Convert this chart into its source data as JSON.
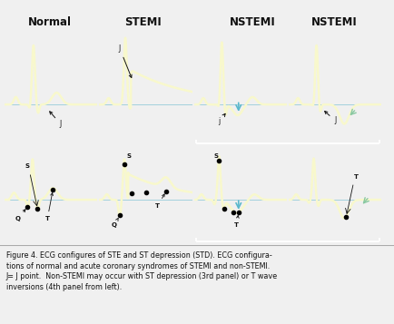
{
  "title_labels": [
    "Normal",
    "STEMI",
    "NSTEMI",
    "NSTEMI"
  ],
  "title_color": "#111111",
  "title_fontsize": 8.5,
  "title_fontweight": "bold",
  "bg_outer": "#f0f0f0",
  "bg_grey_box": "#b0b0b0",
  "panel_bg": "#6ab8d8",
  "ecg_color": "#f8f8cc",
  "baseline_color": "#90c8d8",
  "caption_bg": "#d8e4ec",
  "caption": "Figure 4. ECG configures of STE and ST depression (STD). ECG configura-\ntions of normal and acute coronary syndromes of STEMI and non-STEMI.\nJ= J point.  Non-STEMI may occur with ST depression (3rd panel) or T wave\ninversions (4th panel from left).",
  "caption_fontsize": 5.8,
  "bracket_color": "#ffffff",
  "annotation_color": "#111111",
  "teal_arrow": "#5ab8cc",
  "green_arrow": "#88c8a0"
}
